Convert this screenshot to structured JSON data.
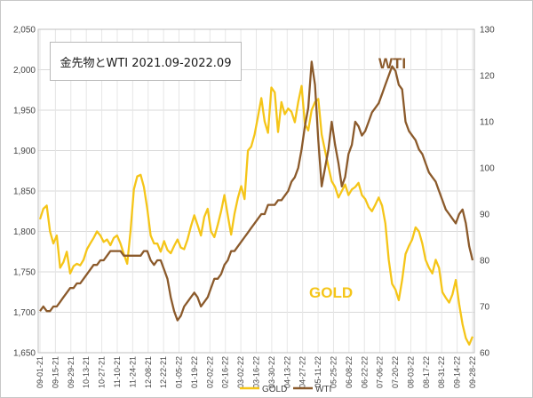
{
  "title": "金先物とWTI 2021.09-2022.09",
  "chart_data": {
    "type": "line",
    "title": "金先物とWTI 2021.09-2022.09",
    "xlabel": "",
    "y_left_ticks": [
      1650,
      1700,
      1750,
      1800,
      1850,
      1900,
      1950,
      2000,
      2050
    ],
    "y_left_labels": [
      "1,650",
      "1,700",
      "1,750",
      "1,800",
      "1,850",
      "1,900",
      "1,950",
      "2,000",
      "2,050"
    ],
    "ylim_left": [
      1650,
      2050
    ],
    "y_right_ticks": [
      60,
      70,
      80,
      90,
      100,
      110,
      120,
      130
    ],
    "ylim_right": [
      60,
      130
    ],
    "x_ticks": [
      "09-01-21",
      "09-15-21",
      "09-29-21",
      "10-13-21",
      "10-27-21",
      "11-10-21",
      "11-24-21",
      "12-08-21",
      "12-22-21",
      "01-05-22",
      "01-19-22",
      "02-02-22",
      "02-16-22",
      "03-02-22",
      "03-16-22",
      "03-30-22",
      "04-13-22",
      "04-27-22",
      "05-11-22",
      "05-25-22",
      "06-08-22",
      "06-22-22",
      "07-06-22",
      "07-20-22",
      "08-03-22",
      "08-17-22",
      "08-31-22",
      "09-14-22",
      "09-28-22"
    ],
    "grid": true,
    "legend": "bottom",
    "series": [
      {
        "name": "GOLD",
        "axis": "left",
        "color": "#F5C518",
        "values": [
          1815,
          1828,
          1832,
          1800,
          1785,
          1795,
          1755,
          1762,
          1775,
          1748,
          1757,
          1760,
          1758,
          1765,
          1778,
          1785,
          1792,
          1800,
          1795,
          1787,
          1790,
          1783,
          1792,
          1795,
          1785,
          1772,
          1760,
          1800,
          1852,
          1868,
          1870,
          1855,
          1828,
          1795,
          1785,
          1785,
          1775,
          1788,
          1777,
          1773,
          1782,
          1790,
          1780,
          1778,
          1790,
          1806,
          1820,
          1808,
          1795,
          1818,
          1828,
          1800,
          1793,
          1808,
          1825,
          1845,
          1820,
          1796,
          1822,
          1841,
          1856,
          1840,
          1900,
          1905,
          1920,
          1942,
          1965,
          1936,
          1922,
          1978,
          1972,
          1923,
          1960,
          1945,
          1952,
          1948,
          1935,
          1960,
          1980,
          1933,
          1925,
          1950,
          1960,
          1964,
          1920,
          1900,
          1880,
          1862,
          1855,
          1842,
          1850,
          1858,
          1845,
          1852,
          1855,
          1860,
          1845,
          1840,
          1830,
          1825,
          1833,
          1842,
          1832,
          1810,
          1765,
          1735,
          1728,
          1715,
          1740,
          1772,
          1782,
          1790,
          1805,
          1800,
          1785,
          1765,
          1755,
          1748,
          1765,
          1755,
          1725,
          1718,
          1712,
          1722,
          1740,
          1710,
          1685,
          1668,
          1660,
          1670
        ],
        "label": "GOLD"
      },
      {
        "name": "WTI",
        "axis": "right",
        "color": "#8B5A2B",
        "values": [
          69,
          70,
          69,
          69,
          70,
          70,
          71,
          72,
          73,
          74,
          74,
          75,
          75,
          76,
          77,
          78,
          79,
          79,
          80,
          80,
          81,
          82,
          82,
          82,
          82,
          81,
          81,
          81,
          81,
          81,
          81,
          82,
          82,
          80,
          79,
          80,
          80,
          78,
          76,
          72,
          69,
          67,
          68,
          70,
          71,
          72,
          73,
          72,
          70,
          71,
          72,
          74,
          76,
          76,
          77,
          79,
          80,
          82,
          82,
          83,
          84,
          85,
          86,
          87,
          88,
          89,
          90,
          90,
          92,
          92,
          92,
          93,
          93,
          94,
          95,
          97,
          98,
          100,
          104,
          109,
          113,
          123,
          118,
          106,
          96,
          100,
          104,
          110,
          105,
          101,
          96,
          98,
          103,
          105,
          110,
          109,
          107,
          108,
          110,
          112,
          113,
          114,
          116,
          118,
          120,
          122,
          121,
          118,
          117,
          110,
          108,
          107,
          106,
          104,
          103,
          101,
          99,
          98,
          97,
          95,
          93,
          91,
          90,
          89,
          88,
          90,
          91,
          88,
          83,
          80
        ],
        "label": "WTI"
      }
    ]
  },
  "legend": {
    "gold": "GOLD",
    "wti": "WTI"
  },
  "annotations": {
    "wti_label": "WTI",
    "gold_label": "GOLD"
  }
}
